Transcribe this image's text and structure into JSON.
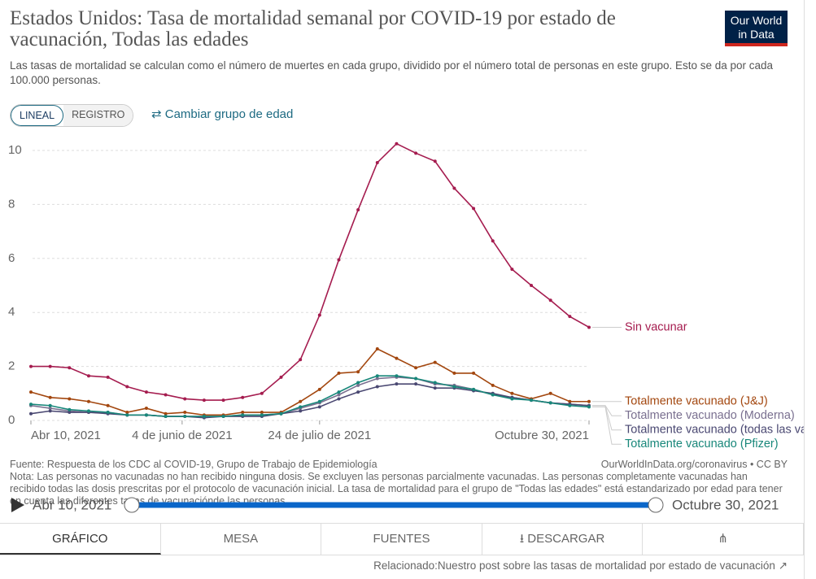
{
  "logo": [
    "Our World",
    "in Data"
  ],
  "controls": {
    "scale_buttons": [
      "LINEAL",
      "REGISTRO"
    ],
    "change_age": "Cambiar grupo de edad"
  },
  "chart_data": {
    "type": "line",
    "title": "Estados Unidos: Tasa de mortalidad semanal por COVID-19 por estado de vacunación, Todas las edades",
    "subtitle": "Las tasas de mortalidad se calculan como el número de muertes en cada grupo, dividido por el número total de personas en este grupo. Esto se da por cada 100.000 personas.",
    "source": "Fuente: Respuesta de los CDC al COVID-19, Grupo de Trabajo de Epidemiología",
    "source_url": "OurWorldInData.org/coronavirus • CC BY",
    "note": "Nota: Las personas no vacunadas no han recibido ninguna dosis. Se excluyen las personas parcialmente vacunadas. Las personas completamente vacunadas han recibido todas las dosis prescritas por el protocolo de vacunación inicial. La tasa de mortalidad para el grupo de \"Todas las edades\" está estandarizado por edad para tener en cuenta las diferentes tasas de vacunaciónde las personas",
    "x": [
      "2021-04-10",
      "2021-04-17",
      "2021-04-24",
      "2021-05-01",
      "2021-05-08",
      "2021-05-15",
      "2021-05-22",
      "2021-05-29",
      "2021-06-05",
      "2021-06-12",
      "2021-06-19",
      "2021-06-26",
      "2021-07-03",
      "2021-07-10",
      "2021-07-17",
      "2021-07-24",
      "2021-07-31",
      "2021-08-07",
      "2021-08-14",
      "2021-08-21",
      "2021-08-28",
      "2021-09-04",
      "2021-09-11",
      "2021-09-18",
      "2021-09-25",
      "2021-10-02",
      "2021-10-09",
      "2021-10-16",
      "2021-10-23",
      "2021-10-30"
    ],
    "xlim": [
      "2021-04-10",
      "2021-10-30"
    ],
    "xticks": [
      {
        "value": "2021-04-10",
        "label": "Abr 10, 2021"
      },
      {
        "value": "2021-06-04",
        "label": "4 de junio de 2021"
      },
      {
        "value": "2021-07-24",
        "label": "24 de julio de 2021"
      },
      {
        "value": "2021-10-30",
        "label": "Octubre 30, 2021"
      }
    ],
    "ylim": [
      0,
      10
    ],
    "yticks": [
      0,
      2,
      4,
      6,
      8,
      10
    ],
    "grid": true,
    "series": [
      {
        "name": "Sin vacunar",
        "color": "#a51c4f",
        "values": [
          2.0,
          2.0,
          1.95,
          1.65,
          1.6,
          1.25,
          1.05,
          0.95,
          0.8,
          0.75,
          0.75,
          0.85,
          1.0,
          1.6,
          2.25,
          3.9,
          5.95,
          7.8,
          9.55,
          10.25,
          9.9,
          9.6,
          8.6,
          7.85,
          6.65,
          5.6,
          5.0,
          4.45,
          3.85,
          3.45
        ]
      },
      {
        "name": "Totalmente vacunado (J&J)",
        "color": "#a3470f",
        "values": [
          1.05,
          0.85,
          0.8,
          0.7,
          0.55,
          0.3,
          0.45,
          0.25,
          0.3,
          0.2,
          0.2,
          0.3,
          0.3,
          0.3,
          0.7,
          1.15,
          1.75,
          1.8,
          2.65,
          2.3,
          1.95,
          2.15,
          1.75,
          1.75,
          1.3,
          1.0,
          0.8,
          1.0,
          0.7,
          0.7
        ]
      },
      {
        "name": "Totalmente vacunado (Moderna)",
        "color": "#7a7090",
        "values": [
          0.55,
          0.45,
          0.35,
          0.3,
          0.3,
          0.2,
          0.2,
          0.15,
          0.15,
          0.15,
          0.15,
          0.2,
          0.2,
          0.25,
          0.45,
          0.65,
          0.95,
          1.3,
          1.55,
          1.6,
          1.55,
          1.35,
          1.3,
          1.15,
          0.95,
          0.85,
          0.75,
          0.65,
          0.6,
          0.55
        ]
      },
      {
        "name": "Totalmente vacunado (todas las vacunas)",
        "color": "#4a4872",
        "values": [
          0.25,
          0.35,
          0.3,
          0.3,
          0.25,
          0.2,
          0.2,
          0.15,
          0.15,
          0.1,
          0.15,
          0.15,
          0.15,
          0.25,
          0.35,
          0.5,
          0.8,
          1.05,
          1.25,
          1.35,
          1.35,
          1.2,
          1.2,
          1.1,
          1.0,
          0.85,
          0.75,
          0.65,
          0.6,
          0.55
        ]
      },
      {
        "name": "Totalmente vacunado (Pfizer)",
        "color": "#18877a",
        "values": [
          0.6,
          0.55,
          0.4,
          0.35,
          0.3,
          0.2,
          0.2,
          0.15,
          0.15,
          0.15,
          0.15,
          0.2,
          0.2,
          0.25,
          0.5,
          0.7,
          1.05,
          1.4,
          1.65,
          1.65,
          1.55,
          1.4,
          1.25,
          1.15,
          0.95,
          0.8,
          0.75,
          0.65,
          0.55,
          0.5
        ]
      }
    ]
  },
  "timeline": {
    "start": "Abr 10, 2021",
    "end": "Octubre 30, 2021"
  },
  "tabs": [
    "GRÁFICO",
    "MESA",
    "FUENTES",
    "DESCARGAR"
  ],
  "related": "Relacionado:Nuestro post sobre las tasas de mortalidad por estado de vacunación"
}
